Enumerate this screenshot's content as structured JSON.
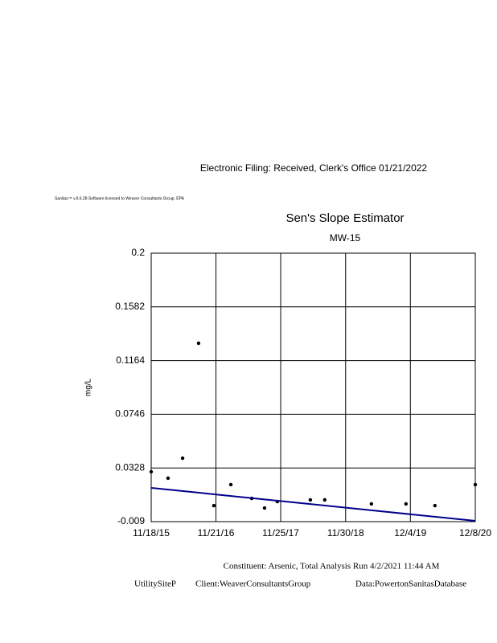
{
  "header": {
    "filing": "Electronic Filing: Received, Clerk's Office 01/21/2022",
    "software": "Sanitas™ v.9.6.28 Software licensed to Weaver Consultants Group. EPA"
  },
  "chart_data": {
    "type": "scatter",
    "title": "Sen's Slope Estimator",
    "subtitle": "MW-15",
    "y_label": "mg/L",
    "xlim": [
      "11/18/15",
      "12/8/20"
    ],
    "xticks": [
      "11/18/15",
      "11/21/16",
      "11/25/17",
      "11/30/18",
      "12/4/19",
      "12/8/20"
    ],
    "ylim": [
      -0.009,
      0.2
    ],
    "yticks": [
      -0.009,
      0.0328,
      0.0746,
      0.1164,
      0.1582,
      0.2
    ],
    "grid": true,
    "series": [
      {
        "name": "MW-15",
        "color": "#000000",
        "mode": "markers",
        "x": [
          "11/18/15",
          "2/22/16",
          "5/15/16",
          "8/14/16",
          "11/9/16",
          "2/14/17",
          "6/13/17",
          "8/25/17",
          "11/6/17",
          "5/13/18",
          "8/3/18",
          "4/26/19",
          "11/9/19",
          "4/22/20",
          "12/8/20"
        ],
        "values": [
          0.0298,
          0.0248,
          0.0404,
          0.1299,
          0.0035,
          0.0198,
          0.0091,
          0.0016,
          0.0066,
          0.0079,
          0.0079,
          0.0048,
          0.0048,
          0.0035,
          0.0198
        ]
      },
      {
        "name": "Sen's slope",
        "color": "#00008b",
        "mode": "line",
        "x": [
          "11/18/15",
          "12/8/20"
        ],
        "values": [
          0.0173,
          -0.0084
        ]
      }
    ]
  },
  "footer": {
    "constituent": "Constituent: Arsenic, Total Analysis Run 4/2/2021 11:44 AM",
    "site": "UtilitySiteP",
    "client": "Client:WeaverConsultantsGroup",
    "data": "Data:PowertonSanitasDatabase"
  }
}
